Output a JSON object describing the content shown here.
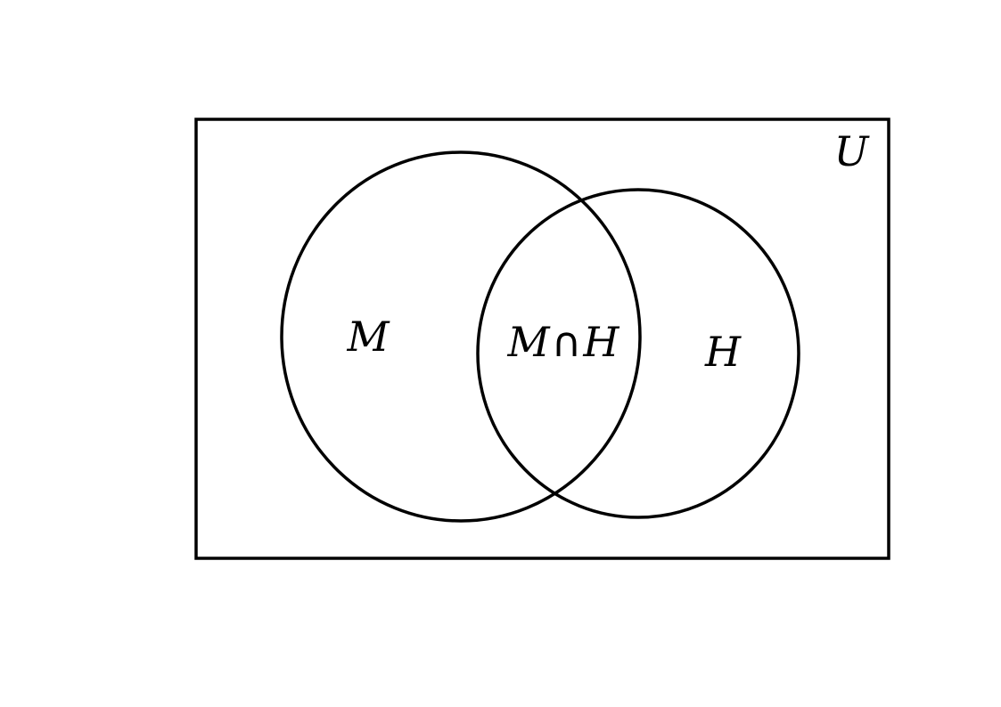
{
  "colors": {
    "background": "#ffffff",
    "stroke": "#000000",
    "text": "#000000"
  },
  "diagram": {
    "type": "venn",
    "universe_label": "U",
    "sets": [
      {
        "label": "M"
      },
      {
        "label": "H"
      }
    ],
    "intersection": {
      "left": "M",
      "operator": "∩",
      "right": "H"
    }
  }
}
